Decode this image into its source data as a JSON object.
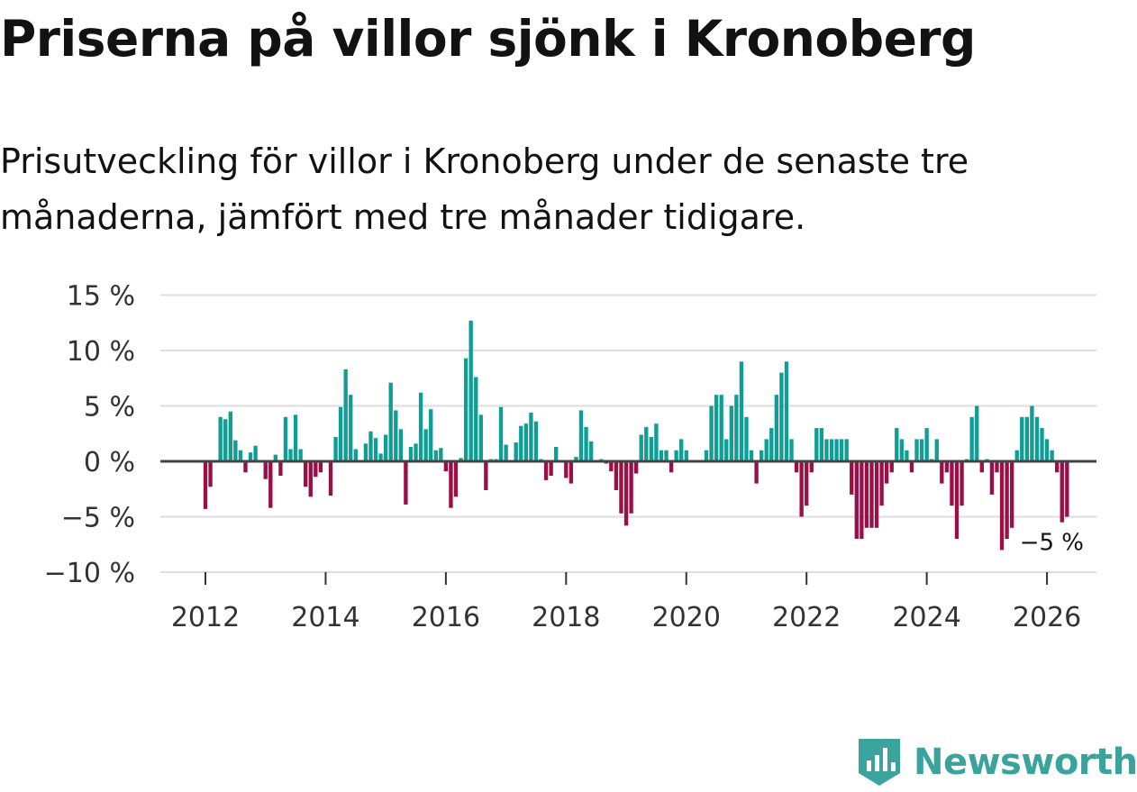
{
  "title": "Priserna på villor sjönk i Kronoberg",
  "subtitle": "Prisutveckling för villor i Kronoberg under de senaste tre månaderna, jämfört med tre månader tidigare.",
  "brand": {
    "name": "Newsworthy"
  },
  "colors": {
    "positive": "#0f9e94",
    "negative": "#9b0f47",
    "grid": "#dddddd",
    "zero_line": "#444444",
    "brand": "#3aa39b"
  },
  "chart_data": {
    "type": "bar",
    "title": "Priserna på villor sjönk i Kronoberg",
    "xlabel": "",
    "ylabel": "",
    "start": "2012-01",
    "frequency": "monthly",
    "ylim": [
      -10,
      15
    ],
    "yticks": [
      15,
      10,
      5,
      0,
      -5,
      -10
    ],
    "ytick_labels": [
      "15 %",
      "10 %",
      "5 %",
      "0 %",
      "−5 %",
      "−10 %"
    ],
    "xticks": [
      2012,
      2014,
      2016,
      2018,
      2020,
      2022,
      2024,
      2026
    ],
    "xtick_labels": [
      "2012",
      "2014",
      "2016",
      "2018",
      "2020",
      "2022",
      "2024",
      "2026"
    ],
    "last_value_label": "−5 %",
    "values": [
      -4.3,
      -2.3,
      0,
      4.0,
      3.8,
      4.5,
      1.9,
      1.0,
      -1.0,
      0.8,
      1.4,
      0,
      -1.6,
      -4.2,
      0.6,
      -1.3,
      4.0,
      1.1,
      4.2,
      1.1,
      -2.3,
      -3.2,
      -1.4,
      -1.0,
      0,
      -3.1,
      2.2,
      4.9,
      8.3,
      6.0,
      1.1,
      0,
      1.6,
      2.7,
      2.1,
      0.7,
      2.4,
      7.1,
      4.6,
      2.9,
      -3.9,
      1.3,
      1.6,
      6.2,
      2.9,
      4.7,
      1.0,
      1.2,
      -0.9,
      -4.2,
      -3.2,
      0.3,
      9.3,
      12.7,
      7.6,
      4.2,
      -2.6,
      0.2,
      0.2,
      4.9,
      1.5,
      0.1,
      1.7,
      3.2,
      3.4,
      4.4,
      3.6,
      0.2,
      -1.7,
      -1.3,
      1.3,
      0.1,
      -1.5,
      -2.0,
      0.4,
      4.6,
      3.1,
      1.8,
      0.1,
      0.2,
      -0.2,
      -0.9,
      -2.6,
      -4.7,
      -5.8,
      -4.7,
      -1.1,
      2.4,
      3.1,
      2.2,
      3.4,
      1.0,
      1.0,
      -1.0,
      1.0,
      2.0,
      1.0,
      0.1,
      0.1,
      0.1,
      1.0,
      5.0,
      6.0,
      6.0,
      2.0,
      5.0,
      6.0,
      9.0,
      4.0,
      1.0,
      -2.0,
      1.0,
      2.0,
      3.0,
      6.0,
      8.0,
      9.0,
      2.0,
      -1.0,
      -5.0,
      -4.0,
      -1.0,
      3.0,
      3.0,
      2.0,
      2.0,
      2.0,
      2.0,
      2.0,
      -3.0,
      -7.0,
      -7.0,
      -6.0,
      -6.0,
      -6.0,
      -4.0,
      -2.0,
      -1.0,
      3.0,
      2.0,
      1.0,
      -1.0,
      2.0,
      2.0,
      3.0,
      0.2,
      2.0,
      -2.0,
      -1.0,
      -4.0,
      -7.0,
      -4.0,
      0.2,
      4.0,
      5.0,
      -1.0,
      0.2,
      -3.0,
      -1.0,
      -8.0,
      -7.0,
      -6.0,
      1.0,
      4.0,
      4.0,
      5.0,
      4.0,
      3.0,
      2.0,
      1.0,
      -1.0,
      -5.5,
      -5.0
    ]
  }
}
